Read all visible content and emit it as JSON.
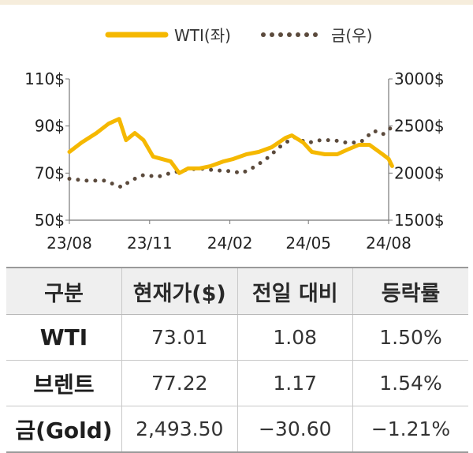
{
  "chart_data": {
    "type": "line",
    "legend": [
      {
        "name": "WTI(좌)",
        "color": "#f5b800",
        "style": "solid"
      },
      {
        "name": "금(우)",
        "color": "#5b4a3c",
        "style": "dotted"
      }
    ],
    "legend_position": "top-center",
    "x_ticks": [
      "23/08",
      "23/11",
      "24/02",
      "24/05",
      "24/08"
    ],
    "y_left": {
      "ticks": [
        "110$",
        "90$",
        "70$",
        "50$"
      ],
      "range": [
        50,
        110
      ]
    },
    "y_right": {
      "ticks": [
        "3000$",
        "2500$",
        "2000$",
        "1500$"
      ],
      "range": [
        1500,
        3000
      ]
    },
    "grid": false,
    "series": [
      {
        "name": "WTI(좌)",
        "axis": "left",
        "x": [
          "2023-08-01",
          "2023-08-15",
          "2023-09-01",
          "2023-09-15",
          "2023-09-27",
          "2023-10-05",
          "2023-10-15",
          "2023-10-25",
          "2023-11-05",
          "2023-11-15",
          "2023-11-25",
          "2023-12-05",
          "2023-12-15",
          "2023-12-28",
          "2024-01-10",
          "2024-01-25",
          "2024-02-05",
          "2024-02-20",
          "2024-03-05",
          "2024-03-20",
          "2024-04-05",
          "2024-04-12",
          "2024-04-25",
          "2024-05-05",
          "2024-05-20",
          "2024-06-03",
          "2024-06-15",
          "2024-06-28",
          "2024-07-10",
          "2024-07-25",
          "2024-08-01",
          "2024-08-05"
        ],
        "y": [
          79,
          83,
          87,
          91,
          93,
          84,
          87,
          84,
          77,
          76,
          75,
          70,
          72,
          72,
          73,
          75,
          76,
          78,
          79,
          81,
          85,
          86,
          83,
          79,
          78,
          78,
          80,
          82,
          82,
          78,
          76,
          73
        ]
      },
      {
        "name": "금(우)",
        "axis": "right",
        "x": [
          "2023-08-01",
          "2023-08-20",
          "2023-09-10",
          "2023-09-30",
          "2023-10-10",
          "2023-10-25",
          "2023-11-10",
          "2023-11-25",
          "2023-12-10",
          "2023-12-28",
          "2024-01-15",
          "2024-02-01",
          "2024-02-15",
          "2024-03-01",
          "2024-03-15",
          "2024-04-01",
          "2024-04-15",
          "2024-04-30",
          "2024-05-15",
          "2024-05-30",
          "2024-06-15",
          "2024-06-30",
          "2024-07-15",
          "2024-07-25",
          "2024-08-05"
        ],
        "y": [
          1940,
          1920,
          1920,
          1850,
          1920,
          1980,
          1960,
          2000,
          2030,
          2050,
          2030,
          2020,
          2000,
          2070,
          2160,
          2300,
          2380,
          2320,
          2350,
          2350,
          2320,
          2330,
          2450,
          2410,
          2490
        ]
      }
    ]
  },
  "table": {
    "headers": [
      "구분",
      "현재가($)",
      "전일 대비",
      "등락률"
    ],
    "rows": [
      [
        "WTI",
        "73.01",
        "1.08",
        "1.50%"
      ],
      [
        "브렌트",
        "77.22",
        "1.17",
        "1.54%"
      ],
      [
        "금(Gold)",
        "2,493.50",
        "−30.60",
        "−1.21%"
      ]
    ]
  }
}
